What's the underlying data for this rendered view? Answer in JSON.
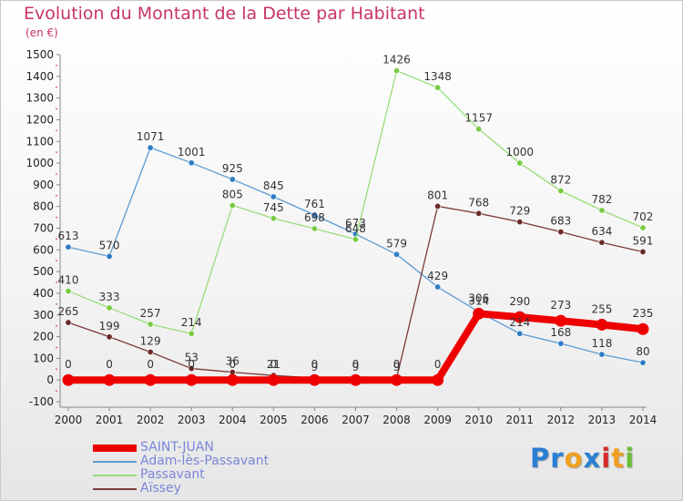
{
  "title": "Evolution du Montant de la Dette par Habitant",
  "unit": "(en €)",
  "brand": {
    "text": "Proxiti",
    "letters": [
      {
        "ch": "P",
        "color": "#2a7fd4"
      },
      {
        "ch": "r",
        "color": "#2a7fd4"
      },
      {
        "ch": "o",
        "color": "#f0a020"
      },
      {
        "ch": "x",
        "color": "#2a7fd4"
      },
      {
        "ch": "i",
        "color": "#d42a2a"
      },
      {
        "ch": "t",
        "color": "#f0a020"
      },
      {
        "ch": "i",
        "color": "#6abf3a"
      }
    ]
  },
  "chart_data": {
    "type": "line",
    "title": "Evolution du Montant de la Dette par Habitant",
    "ylabel": "(en €)",
    "xlabel": "",
    "x": [
      "2000",
      "2001",
      "2002",
      "2003",
      "2004",
      "2005",
      "2006",
      "2007",
      "2008",
      "2009",
      "2010",
      "2011",
      "2012",
      "2013",
      "2014"
    ],
    "ylim": [
      -100,
      1500
    ],
    "yticks": [
      -100,
      0,
      100,
      200,
      300,
      400,
      500,
      600,
      700,
      800,
      900,
      1000,
      1100,
      1200,
      1300,
      1400,
      1500
    ],
    "grid": false,
    "legend": "bottom-left",
    "series": [
      {
        "name": "Adam-lès-Passavant",
        "color": "#5b9bd5",
        "marker": "#2f7cc4",
        "width": 1.3,
        "values": [
          613,
          570,
          1071,
          1001,
          925,
          845,
          761,
          673,
          579,
          429,
          314,
          214,
          168,
          118,
          80
        ]
      },
      {
        "name": "Passavant",
        "color": "#99dd77",
        "marker": "#77cc44",
        "width": 1.3,
        "values": [
          410,
          333,
          257,
          214,
          805,
          745,
          698,
          648,
          1426,
          1348,
          1157,
          1000,
          872,
          782,
          702
        ]
      },
      {
        "name": "Aïssey",
        "color": "#7a3a3a",
        "marker": "#6b2a2a",
        "width": 1.3,
        "values": [
          265,
          199,
          129,
          53,
          36,
          21,
          9,
          9,
          9,
          801,
          768,
          729,
          683,
          634,
          591
        ]
      },
      {
        "name": "SAINT-JUAN",
        "color": "#ee0000",
        "marker": "#ee0000",
        "width": 8,
        "values": [
          0,
          0,
          0,
          0,
          0,
          0,
          0,
          0,
          0,
          0,
          306,
          290,
          273,
          255,
          235
        ]
      }
    ],
    "data_labels": {
      "Adam-lès-Passavant": [
        "613",
        "570",
        "1071",
        "1001",
        "925",
        "845",
        "761",
        "673",
        "579",
        "429",
        "314",
        "214",
        "168",
        "118",
        "80"
      ],
      "Passavant": [
        "410",
        "333",
        "257",
        "214",
        "805",
        "745",
        "698",
        "648",
        "1426",
        "1348",
        "1157",
        "1000",
        "872",
        "782",
        "702"
      ],
      "Aïssey": [
        "265",
        "199",
        "129",
        "53",
        "36",
        "21",
        "9",
        "9",
        "9",
        "801",
        "768",
        "729",
        "683",
        "634",
        "591"
      ],
      "SAINT-JUAN": [
        "0",
        "0",
        "0",
        "0",
        "0",
        "0",
        "0",
        "0",
        "0",
        "0",
        "306",
        "290",
        "273",
        "255",
        "235"
      ]
    }
  },
  "legend_items": [
    {
      "label": "SAINT-JUAN",
      "color": "#ee0000",
      "thick": true
    },
    {
      "label": "Adam-lès-Passavant",
      "color": "#5b9bd5",
      "thick": false
    },
    {
      "label": "Passavant",
      "color": "#99dd77",
      "thick": false
    },
    {
      "label": "Aïssey",
      "color": "#7a3a3a",
      "thick": false
    }
  ]
}
